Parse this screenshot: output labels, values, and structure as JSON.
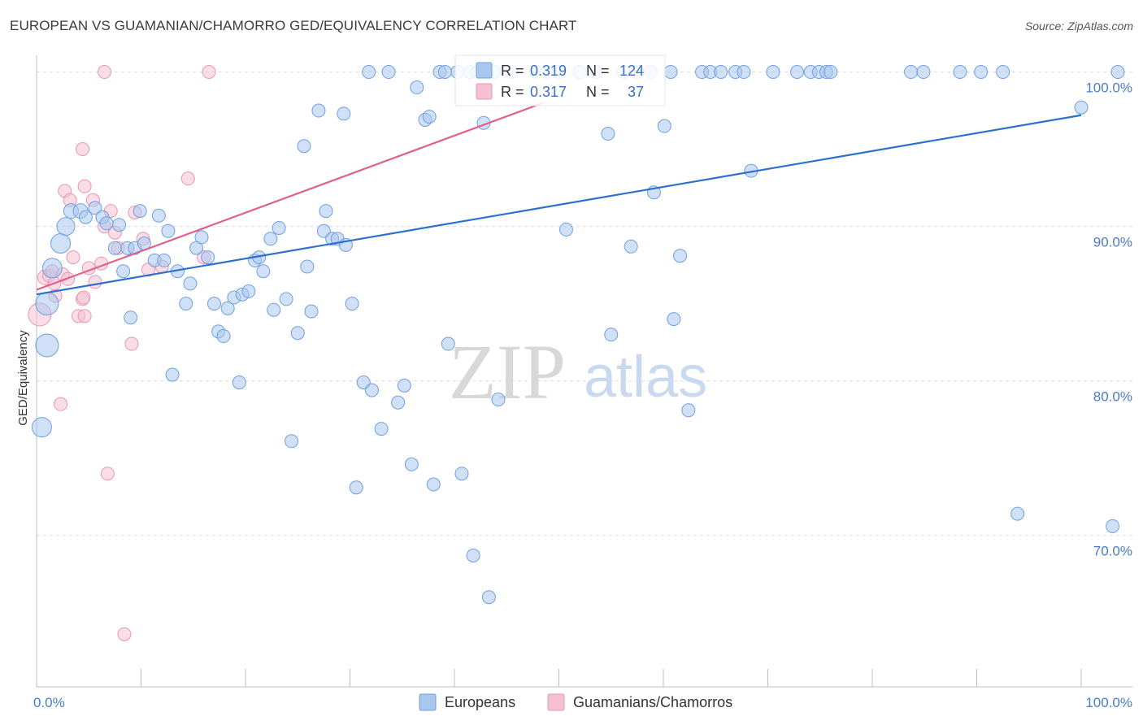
{
  "header": {
    "title": "EUROPEAN VS GUAMANIAN/CHAMORRO GED/EQUIVALENCY CORRELATION CHART",
    "source": "Source: ZipAtlas.com"
  },
  "watermark": {
    "zip": "ZIP",
    "atlas": "atlas"
  },
  "legend": {
    "r_label": "R =",
    "n_label": "N =",
    "series": [
      {
        "r": "0.319",
        "n": "124"
      },
      {
        "r": "0.317",
        "n": "37"
      }
    ]
  },
  "chart_data": {
    "type": "scatter",
    "title": "EUROPEAN VS GUAMANIAN/CHAMORRO GED/EQUIVALENCY CORRELATION CHART",
    "xlabel": "",
    "ylabel": "GED/Equivalency",
    "xlim": [
      0,
      100
    ],
    "ylim": [
      60.2,
      101.5
    ],
    "x_tick_labels": [
      "0.0%",
      "100.0%"
    ],
    "y_ticks": [
      {
        "value": 70,
        "label": "70.0%"
      },
      {
        "value": 80,
        "label": "80.0%"
      },
      {
        "value": 90,
        "label": "90.0%"
      },
      {
        "value": 100,
        "label": "100.0%"
      }
    ],
    "grid": true,
    "legend_position": "top-center",
    "series": [
      {
        "name": "Europeans",
        "color": "#6fa0e0",
        "fill": "#a9c6ee",
        "trend": {
          "x": [
            0,
            100
          ],
          "y": [
            85.6,
            97.2
          ],
          "color": "#2c6fcc"
        },
        "points": [
          [
            0.5,
            77.0,
            12
          ],
          [
            1.0,
            82.3,
            14
          ],
          [
            1.0,
            85.0,
            14
          ],
          [
            1.5,
            87.3,
            12
          ],
          [
            2.3,
            88.9,
            12
          ],
          [
            2.8,
            90.0,
            11
          ],
          [
            3.3,
            91.0,
            9
          ],
          [
            4.2,
            91.0,
            9
          ],
          [
            4.7,
            90.6,
            8
          ],
          [
            5.6,
            91.2,
            8
          ],
          [
            6.3,
            90.6,
            8
          ],
          [
            6.7,
            90.2,
            8
          ],
          [
            7.5,
            88.6,
            8
          ],
          [
            7.9,
            90.1,
            8
          ],
          [
            8.3,
            87.1,
            8
          ],
          [
            8.7,
            88.6,
            8
          ],
          [
            9.0,
            84.1,
            8
          ],
          [
            9.4,
            88.6,
            8
          ],
          [
            9.9,
            91.0,
            8
          ],
          [
            10.3,
            88.9,
            8
          ],
          [
            11.3,
            87.8,
            8
          ],
          [
            11.7,
            90.7,
            8
          ],
          [
            12.2,
            87.8,
            8
          ],
          [
            12.6,
            89.7,
            8
          ],
          [
            13.0,
            80.4,
            8
          ],
          [
            13.5,
            87.1,
            8
          ],
          [
            14.3,
            85.0,
            8
          ],
          [
            14.7,
            86.3,
            8
          ],
          [
            15.3,
            88.6,
            8
          ],
          [
            15.8,
            89.3,
            8
          ],
          [
            16.4,
            88.0,
            8
          ],
          [
            17.0,
            85.0,
            8
          ],
          [
            17.4,
            83.2,
            8
          ],
          [
            17.9,
            82.9,
            8
          ],
          [
            18.3,
            84.7,
            8
          ],
          [
            18.9,
            85.4,
            8
          ],
          [
            19.4,
            79.9,
            8
          ],
          [
            19.7,
            85.6,
            8
          ],
          [
            20.3,
            85.8,
            8
          ],
          [
            20.9,
            87.8,
            8
          ],
          [
            21.3,
            88.0,
            8
          ],
          [
            21.7,
            87.1,
            8
          ],
          [
            22.4,
            89.2,
            8
          ],
          [
            22.7,
            84.6,
            8
          ],
          [
            23.2,
            89.9,
            8
          ],
          [
            23.9,
            85.3,
            8
          ],
          [
            24.4,
            76.1,
            8
          ],
          [
            25.0,
            83.1,
            8
          ],
          [
            25.6,
            95.2,
            8
          ],
          [
            25.9,
            87.4,
            8
          ],
          [
            26.3,
            84.5,
            8
          ],
          [
            27.0,
            97.5,
            8
          ],
          [
            27.5,
            89.7,
            8
          ],
          [
            27.7,
            91.0,
            8
          ],
          [
            28.3,
            89.2,
            8
          ],
          [
            28.8,
            89.2,
            8
          ],
          [
            29.4,
            97.3,
            8
          ],
          [
            29.6,
            88.8,
            8
          ],
          [
            30.2,
            85.0,
            8
          ],
          [
            30.6,
            73.1,
            8
          ],
          [
            31.3,
            79.9,
            8
          ],
          [
            31.8,
            100.0,
            8
          ],
          [
            32.1,
            79.4,
            8
          ],
          [
            33.0,
            76.9,
            8
          ],
          [
            33.7,
            100.0,
            8
          ],
          [
            34.6,
            78.6,
            8
          ],
          [
            35.2,
            79.7,
            8
          ],
          [
            35.9,
            74.6,
            8
          ],
          [
            36.4,
            99.0,
            8
          ],
          [
            37.2,
            96.9,
            8
          ],
          [
            37.6,
            97.1,
            8
          ],
          [
            38.0,
            73.3,
            8
          ],
          [
            38.6,
            100.0,
            8
          ],
          [
            39.1,
            100.0,
            8
          ],
          [
            39.4,
            82.4,
            8
          ],
          [
            40.3,
            100.0,
            8
          ],
          [
            40.7,
            74.0,
            8
          ],
          [
            41.5,
            100.0,
            8
          ],
          [
            42.2,
            100.0,
            8
          ],
          [
            41.8,
            68.7,
            8
          ],
          [
            42.8,
            96.7,
            8
          ],
          [
            43.3,
            66.0,
            8
          ],
          [
            44.2,
            78.8,
            8
          ],
          [
            43.8,
            100.0,
            8
          ],
          [
            45.5,
            100.0,
            8
          ],
          [
            47.8,
            100.0,
            8
          ],
          [
            48.8,
            100.0,
            8
          ],
          [
            50.0,
            100.0,
            8
          ],
          [
            50.7,
            89.8,
            8
          ],
          [
            52.0,
            100.0,
            8
          ],
          [
            53.6,
            100.0,
            8
          ],
          [
            54.7,
            96.0,
            8
          ],
          [
            55.0,
            83.0,
            8
          ],
          [
            56.2,
            100.0,
            8
          ],
          [
            56.9,
            88.7,
            8
          ],
          [
            57.5,
            100.0,
            8
          ],
          [
            58.8,
            100.0,
            8
          ],
          [
            59.1,
            92.2,
            8
          ],
          [
            60.1,
            96.5,
            8
          ],
          [
            60.7,
            100.0,
            8
          ],
          [
            61.0,
            84.0,
            8
          ],
          [
            61.6,
            88.1,
            8
          ],
          [
            62.4,
            78.1,
            8
          ],
          [
            63.7,
            100.0,
            8
          ],
          [
            64.5,
            100.0,
            8
          ],
          [
            65.5,
            100.0,
            8
          ],
          [
            66.9,
            100.0,
            8
          ],
          [
            67.7,
            100.0,
            8
          ],
          [
            68.4,
            93.6,
            8
          ],
          [
            70.5,
            100.0,
            8
          ],
          [
            72.8,
            100.0,
            8
          ],
          [
            74.1,
            100.0,
            8
          ],
          [
            74.9,
            100.0,
            8
          ],
          [
            75.6,
            100.0,
            8
          ],
          [
            76.0,
            100.0,
            8
          ],
          [
            83.7,
            100.0,
            8
          ],
          [
            84.9,
            100.0,
            8
          ],
          [
            88.4,
            100.0,
            8
          ],
          [
            90.4,
            100.0,
            8
          ],
          [
            92.5,
            100.0,
            8
          ],
          [
            93.9,
            71.4,
            8
          ],
          [
            103.0,
            70.6,
            8
          ],
          [
            103.5,
            100.0,
            8
          ],
          [
            100.0,
            97.7,
            8
          ]
        ]
      },
      {
        "name": "Guamanians/Chamorros",
        "color": "#e896b0",
        "fill": "#f6c1d1",
        "trend": {
          "x": [
            0,
            48.5
          ],
          "y": [
            85.9,
            98.0
          ],
          "color": "#e0608a"
        },
        "points": [
          [
            0.3,
            84.3,
            14
          ],
          [
            0.8,
            86.7,
            9
          ],
          [
            1.2,
            86.8,
            8
          ],
          [
            1.5,
            87.1,
            8
          ],
          [
            1.7,
            86.3,
            8
          ],
          [
            1.8,
            85.5,
            8
          ],
          [
            2.3,
            78.5,
            8
          ],
          [
            2.5,
            86.9,
            8
          ],
          [
            2.7,
            92.3,
            8
          ],
          [
            3.0,
            86.6,
            8
          ],
          [
            3.2,
            91.7,
            8
          ],
          [
            3.5,
            88.0,
            8
          ],
          [
            4.0,
            84.2,
            8
          ],
          [
            4.4,
            95.0,
            8
          ],
          [
            4.6,
            84.2,
            8
          ],
          [
            4.4,
            85.3,
            8
          ],
          [
            4.5,
            85.4,
            8
          ],
          [
            4.6,
            92.6,
            8
          ],
          [
            5.0,
            87.3,
            8
          ],
          [
            5.4,
            91.7,
            8
          ],
          [
            5.6,
            86.4,
            8
          ],
          [
            6.2,
            87.6,
            8
          ],
          [
            6.5,
            90.0,
            8
          ],
          [
            6.8,
            74.0,
            8
          ],
          [
            7.1,
            91.0,
            8
          ],
          [
            7.5,
            89.6,
            8
          ],
          [
            7.8,
            88.6,
            8
          ],
          [
            8.4,
            63.6,
            8
          ],
          [
            9.1,
            82.4,
            8
          ],
          [
            9.4,
            90.9,
            8
          ],
          [
            10.2,
            89.2,
            8
          ],
          [
            10.7,
            87.2,
            8
          ],
          [
            12.0,
            87.4,
            8
          ],
          [
            14.5,
            93.1,
            8
          ],
          [
            16.0,
            88.0,
            8
          ],
          [
            16.5,
            100.0,
            8
          ],
          [
            6.5,
            100.0,
            8
          ]
        ]
      }
    ]
  }
}
